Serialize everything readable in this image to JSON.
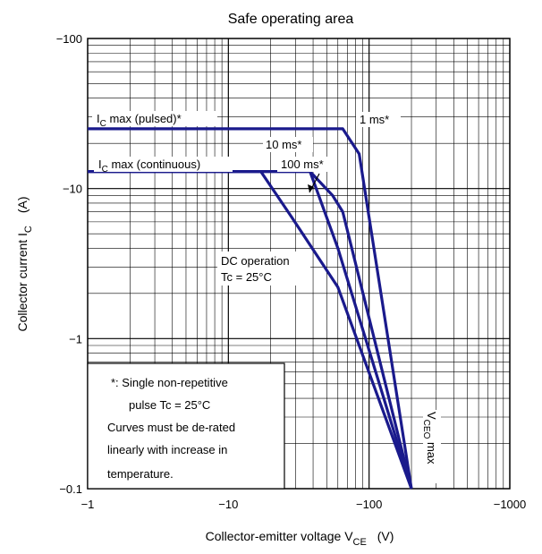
{
  "chart_data": {
    "type": "line",
    "title": "Safe operating area",
    "xlabel": "Collector-emitter voltage   V",
    "xlabel_sub": "CE",
    "xlabel_unit": "(V)",
    "ylabel": "Collector current   I",
    "ylabel_sub": "C",
    "ylabel_unit": "(A)",
    "x_scale": "log",
    "y_scale": "log",
    "xlim": [
      -1,
      -1000
    ],
    "ylim": [
      -0.1,
      -100
    ],
    "grid": true,
    "line_color": "#1a1a8c",
    "x_ticks": [
      {
        "value": -1,
        "label": "−1"
      },
      {
        "value": -10,
        "label": "−10"
      },
      {
        "value": -100,
        "label": "−100"
      },
      {
        "value": -1000,
        "label": "−1000"
      }
    ],
    "y_ticks": [
      {
        "value": -0.1,
        "label": "−0.1"
      },
      {
        "value": -1,
        "label": "−1"
      },
      {
        "value": -10,
        "label": "−10"
      },
      {
        "value": -100,
        "label": "−100"
      }
    ],
    "series": [
      {
        "name": "1 ms*",
        "points": [
          [
            -1,
            -25
          ],
          [
            -65,
            -25
          ],
          [
            -85,
            -17
          ],
          [
            -200,
            -0.1
          ]
        ]
      },
      {
        "name": "10 ms*",
        "points": [
          [
            -1,
            -13
          ],
          [
            -38,
            -13
          ],
          [
            -55,
            -9
          ],
          [
            -65,
            -7
          ],
          [
            -200,
            -0.1
          ]
        ]
      },
      {
        "name": "100 ms*",
        "points": [
          [
            -1,
            -13
          ],
          [
            -38,
            -13
          ],
          [
            -60,
            -4
          ],
          [
            -200,
            -0.1
          ]
        ]
      },
      {
        "name": "DC operation",
        "points": [
          [
            -1,
            -13
          ],
          [
            -17,
            -13
          ],
          [
            -28,
            -6.5
          ],
          [
            -60,
            -2.2
          ],
          [
            -200,
            -0.1
          ]
        ]
      }
    ],
    "annotations": {
      "ic_pulsed": {
        "prefix": "I",
        "sub": "C",
        "rest": " max (pulsed)*"
      },
      "ic_continuous": {
        "prefix": "I",
        "sub": "C",
        "rest": " max (continuous)"
      },
      "label_1ms": "1 ms*",
      "label_10ms": "10 ms*",
      "label_100ms": "100 ms*",
      "dc_line1": "DC operation",
      "dc_line2": "Tc = 25°C",
      "vceo": {
        "prefix": "V",
        "sub": "CEO",
        "rest": " max"
      }
    },
    "note_lines": [
      "*:  Single non-repetitive",
      "pulse    Tc = 25°C",
      "Curves must be de-rated",
      "linearly with increase in",
      "temperature."
    ]
  }
}
